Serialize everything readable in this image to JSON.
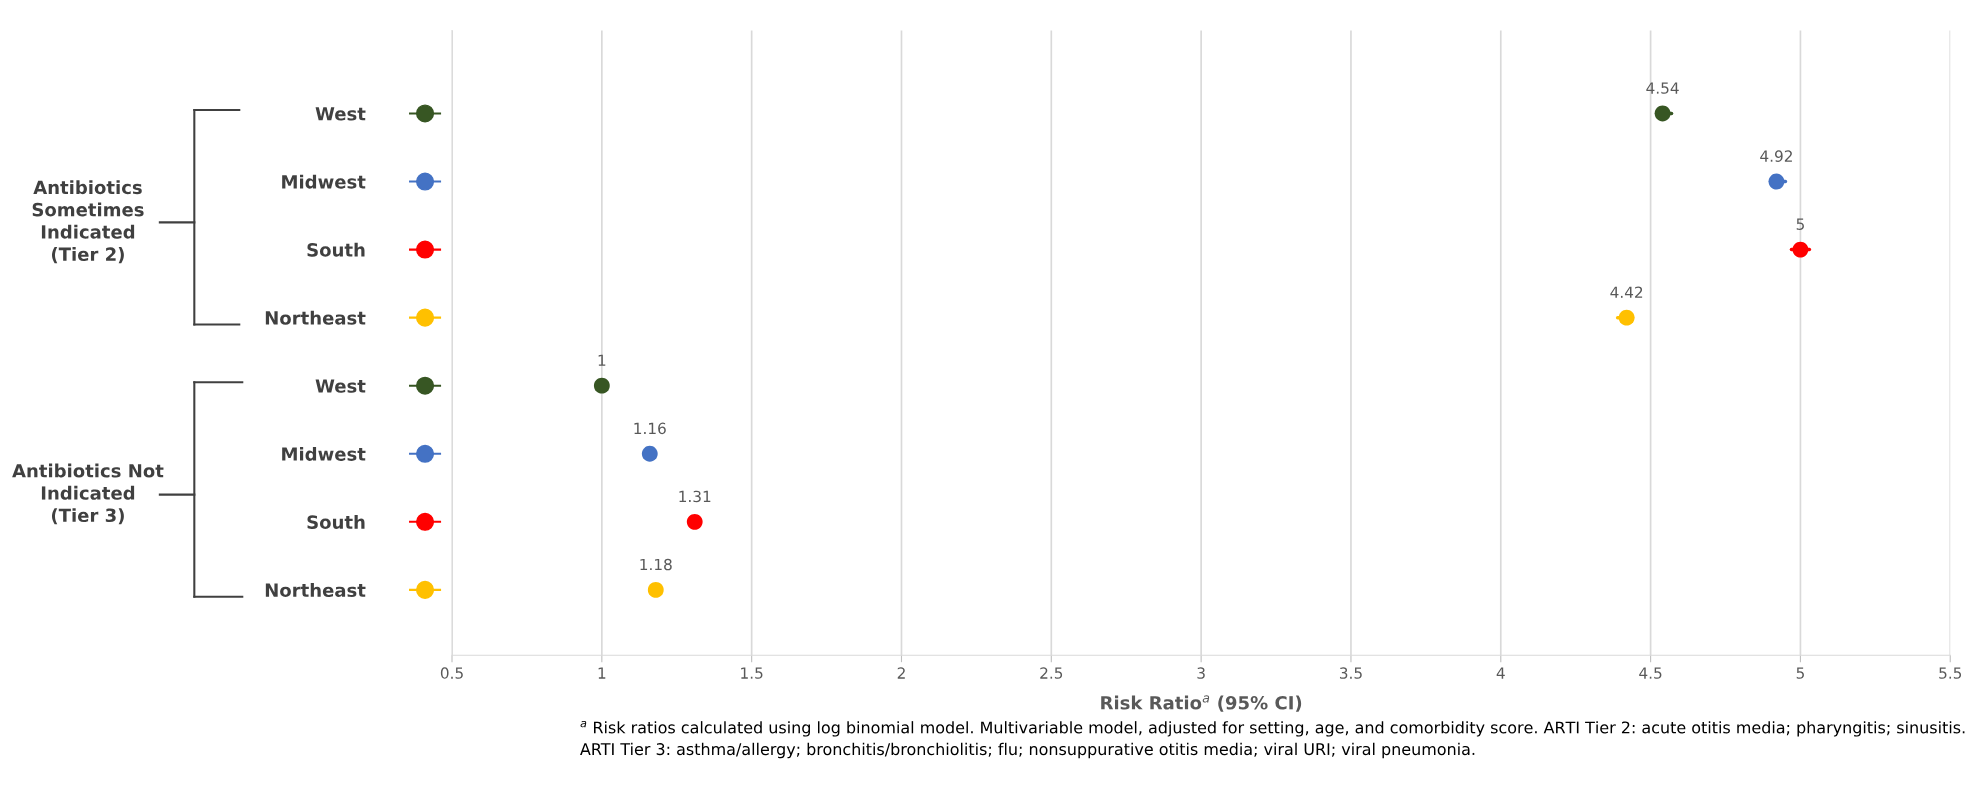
{
  "chart_data": {
    "type": "scatter",
    "orientation": "horizontal",
    "categories": [
      "West",
      "Midwest",
      "South",
      "Northeast",
      "West",
      "Midwest",
      "South",
      "Northeast"
    ],
    "values": [
      4.54,
      4.92,
      5,
      4.42,
      1,
      1.16,
      1.31,
      1.18
    ],
    "errors": [
      [
        4.52,
        4.57
      ],
      [
        4.9,
        4.95
      ],
      [
        4.97,
        5.03
      ],
      [
        4.39,
        4.44
      ],
      null,
      null,
      null,
      null
    ],
    "colors": [
      "#375623",
      "#4472c4",
      "#ff0000",
      "#ffc000",
      "#375623",
      "#4472c4",
      "#ff0000",
      "#ffc000"
    ],
    "data_labels": true,
    "xlabel": "Risk Ratio$^{a}$ (95% CI)",
    "xlim": [
      0.5,
      5.5
    ],
    "xticks": [
      0.5,
      1,
      1.5,
      2,
      2.5,
      3,
      3.5,
      4,
      4.5,
      5,
      5.5
    ],
    "grid": "x",
    "marker": "circle",
    "annotations": [
      "Antibiotics\nSometimes\nIndicated\n(Tier 2)",
      "Antibiotics Not\nIndicated\n(Tier 3)",
      "$^{a}$ Risk ratios calculated using log binomial model. Multivariable model, adjusted for setting, age, and comorbidity score. ARTI Tier 2: acute otitis media; pharyngitis; sinusitis. ARTI Tier 3: asthma/allergy; bronchitis/bronchiolitis; flu; nonsuppurative otitis media; viral URI; viral pneumonia."
    ]
  }
}
